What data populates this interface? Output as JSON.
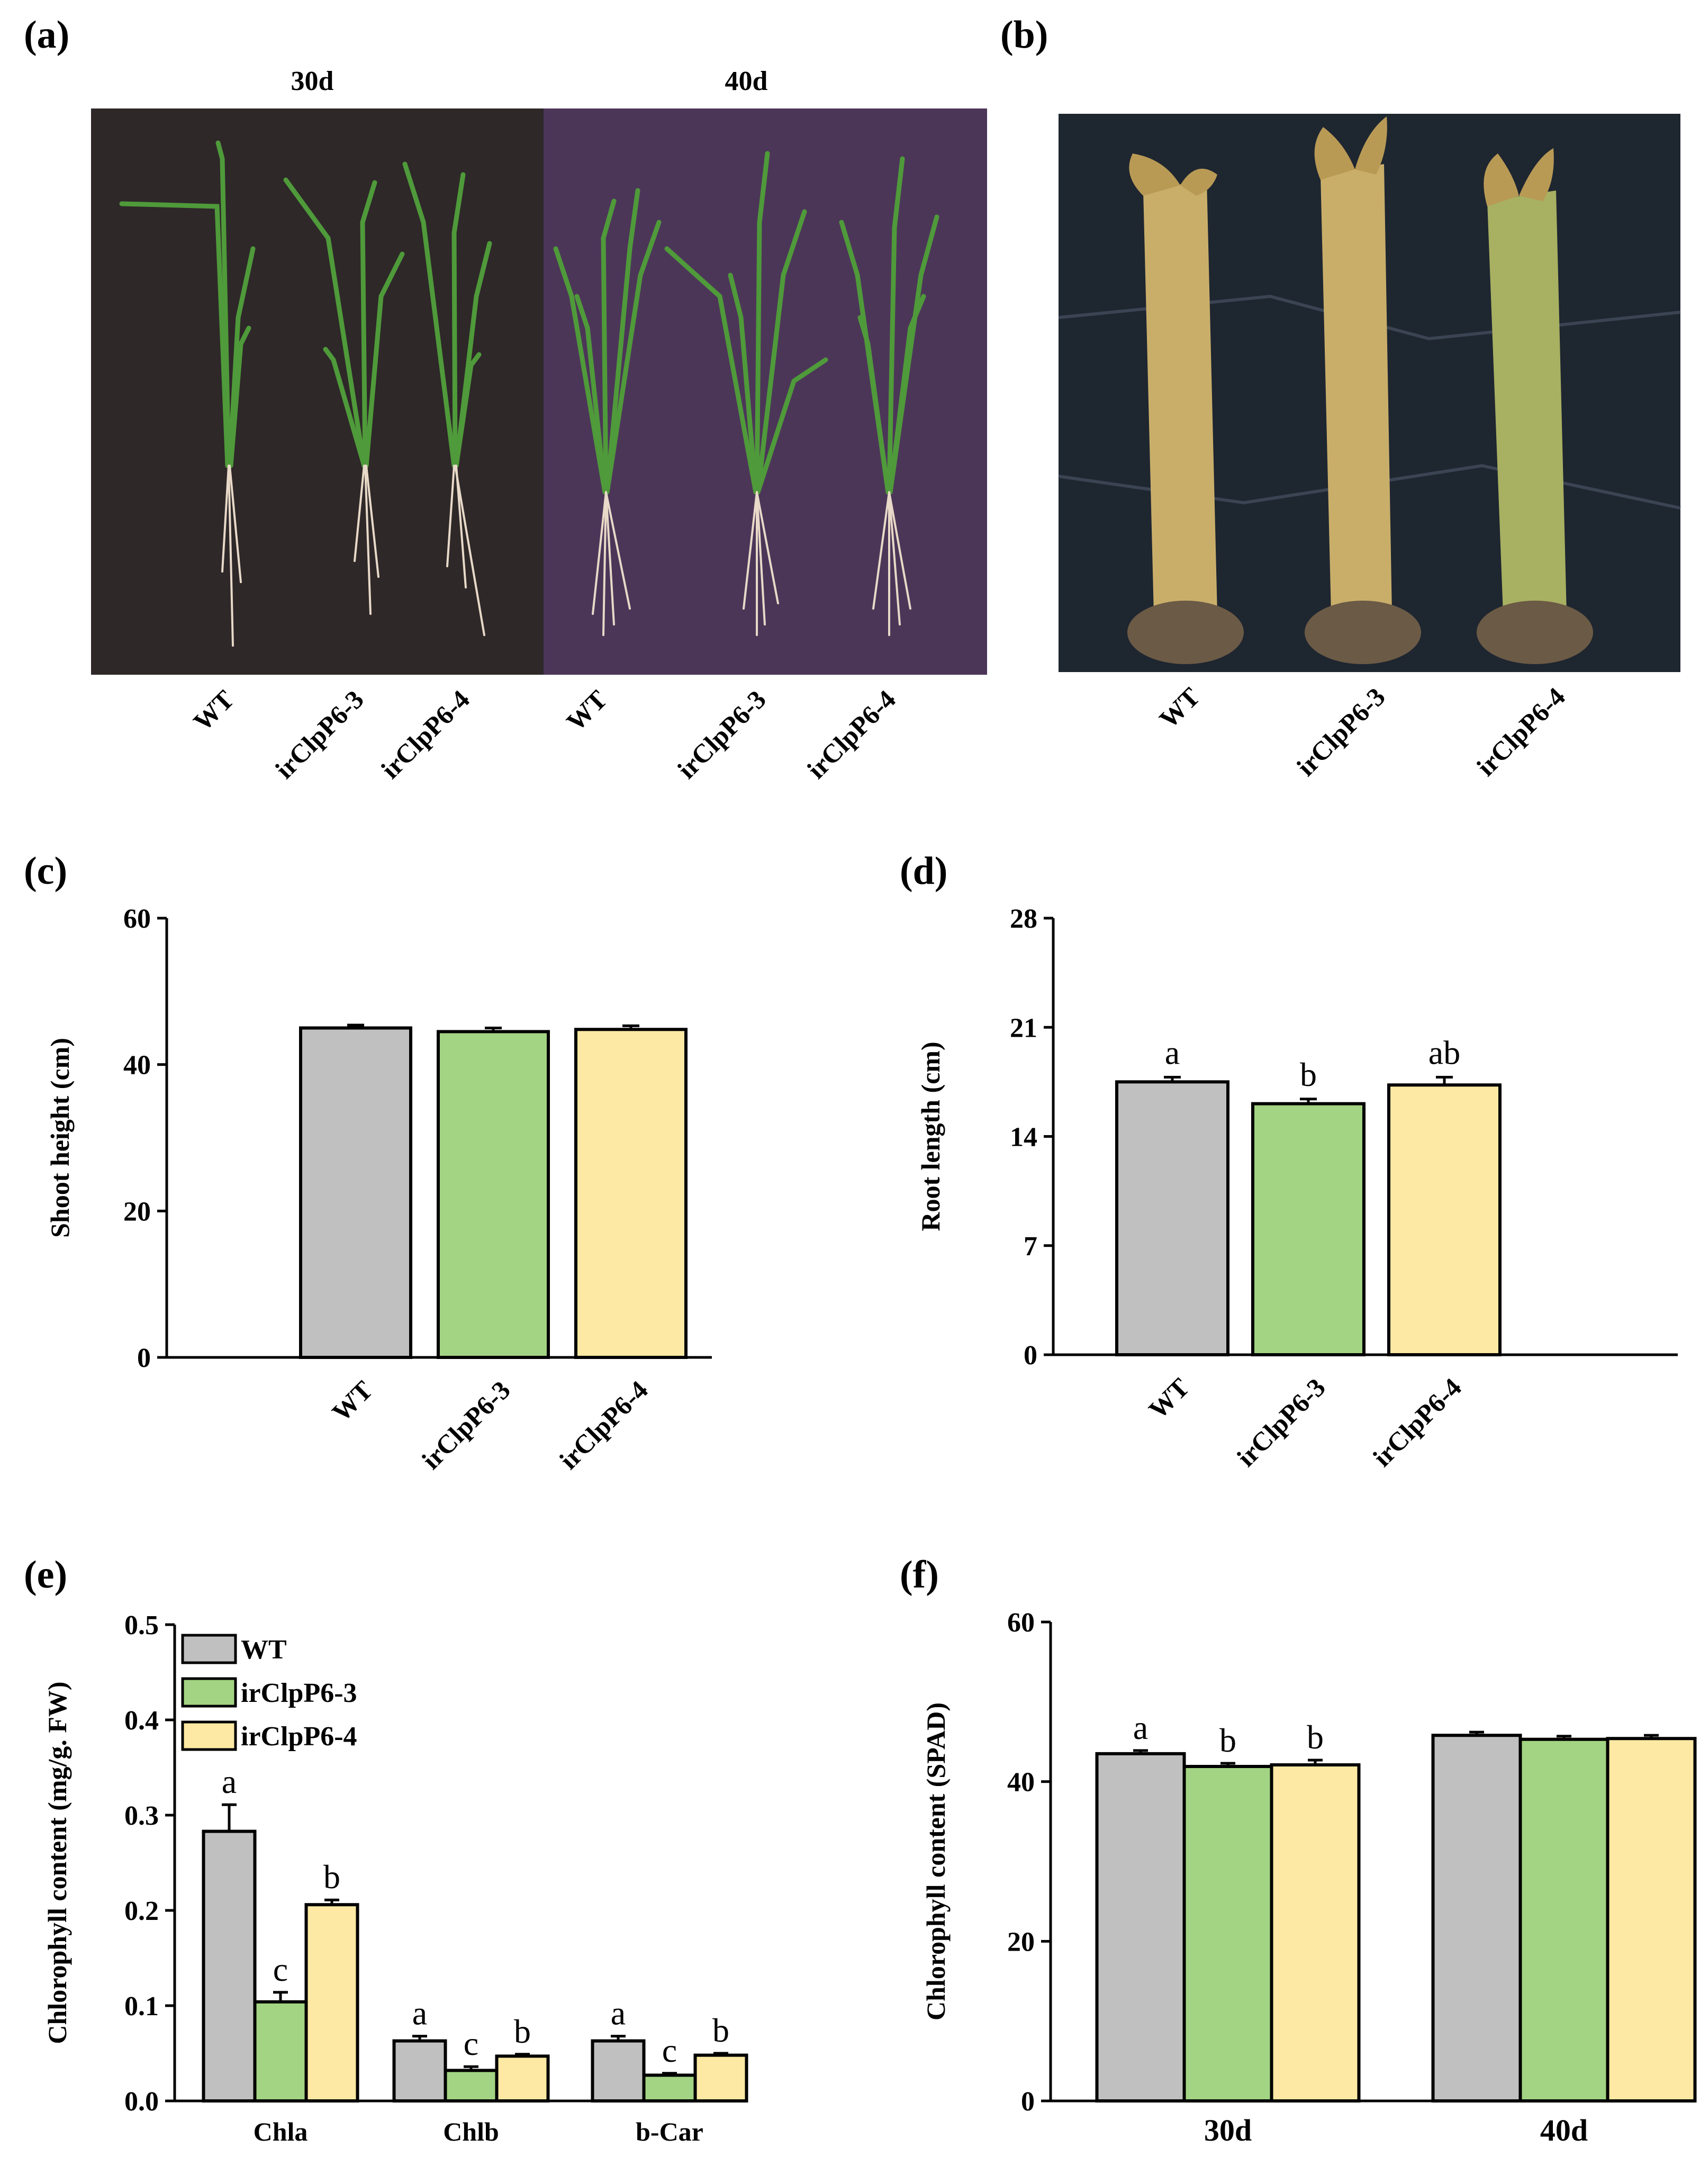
{
  "colors": {
    "WT": "#c0c0c0",
    "irClpP6-3": "#a3d483",
    "irClpP6-4": "#fde9a3",
    "photo_a_left_bg": "#2e2829",
    "photo_a_right_bg": "#4c3658",
    "photo_b_bg": "#1e2630",
    "leaf": "#4f9a3a",
    "root": "#e8d9c8",
    "straw": "#c9ae6a",
    "soil": "#6b5a45"
  },
  "panels": {
    "a": {
      "letter": "(a)",
      "headers": [
        "30d",
        "40d"
      ],
      "labels": [
        "WT",
        "irClpP6-3",
        "irClpP6-4",
        "WT",
        "irClpP6-3",
        "irClpP6-4"
      ]
    },
    "b": {
      "letter": "(b)",
      "labels": [
        "WT",
        "irClpP6-3",
        "irClpP6-4"
      ]
    }
  },
  "chart_data": [
    {
      "id": "c",
      "letter": "(c)",
      "type": "bar",
      "categories": [
        "WT",
        "irClpP6-3",
        "irClpP6-4"
      ],
      "values": [
        45.0,
        44.5,
        44.8
      ],
      "errors": [
        0.4,
        0.5,
        0.5
      ],
      "sig": [],
      "ylabel": "Shoot height (cm)",
      "ylim": [
        0,
        60
      ],
      "yticks": [
        0,
        20,
        40,
        60
      ],
      "xlabel": ""
    },
    {
      "id": "d",
      "letter": "(d)",
      "type": "bar",
      "categories": [
        "WT",
        "irClpP6-3",
        "irClpP6-4"
      ],
      "values": [
        17.5,
        16.1,
        17.3
      ],
      "errors": [
        0.3,
        0.3,
        0.5
      ],
      "sig": [
        "a",
        "b",
        "ab"
      ],
      "ylabel": "Root length (cm)",
      "ylim": [
        0,
        28
      ],
      "yticks": [
        0,
        7,
        14,
        21,
        28
      ],
      "xlabel": ""
    },
    {
      "id": "e",
      "letter": "(e)",
      "type": "bar",
      "categories": [
        "Chla",
        "Chlb",
        "b-Car"
      ],
      "series": [
        {
          "name": "WT",
          "values": [
            0.283,
            0.063,
            0.063
          ],
          "errors": [
            0.028,
            0.005,
            0.005
          ],
          "sig": [
            "a",
            "a",
            "a"
          ]
        },
        {
          "name": "irClpP6-3",
          "values": [
            0.104,
            0.032,
            0.027
          ],
          "errors": [
            0.01,
            0.004,
            0.002
          ],
          "sig": [
            "c",
            "c",
            "c"
          ]
        },
        {
          "name": "irClpP6-4",
          "values": [
            0.206,
            0.047,
            0.048
          ],
          "errors": [
            0.005,
            0.002,
            0.002
          ],
          "sig": [
            "b",
            "b",
            "b"
          ]
        }
      ],
      "ylabel": "Chlorophyll content (mg/g. FW)",
      "ylim": [
        0,
        0.5
      ],
      "yticks": [
        0.0,
        0.1,
        0.2,
        0.3,
        0.4,
        0.5
      ],
      "ytick_labels": [
        "0.0",
        "0.1",
        "0.2",
        "0.3",
        "0.4",
        "0.5"
      ],
      "legend": "top-left",
      "xlabel": ""
    },
    {
      "id": "f",
      "letter": "(f)",
      "type": "bar",
      "categories": [
        "30d",
        "40d"
      ],
      "series": [
        {
          "name": "WT",
          "values": [
            43.5,
            45.8
          ],
          "errors": [
            0.4,
            0.4
          ],
          "sig": [
            "a",
            ""
          ]
        },
        {
          "name": "irClpP6-3",
          "values": [
            41.9,
            45.3
          ],
          "errors": [
            0.4,
            0.4
          ],
          "sig": [
            "b",
            ""
          ]
        },
        {
          "name": "irClpP6-4",
          "values": [
            42.1,
            45.4
          ],
          "errors": [
            0.6,
            0.4
          ],
          "sig": [
            "b",
            ""
          ]
        }
      ],
      "ylabel": "Chlorophyll content (SPAD)",
      "ylim": [
        0,
        60
      ],
      "yticks": [
        0,
        20,
        40,
        60
      ],
      "xlabel": ""
    }
  ]
}
